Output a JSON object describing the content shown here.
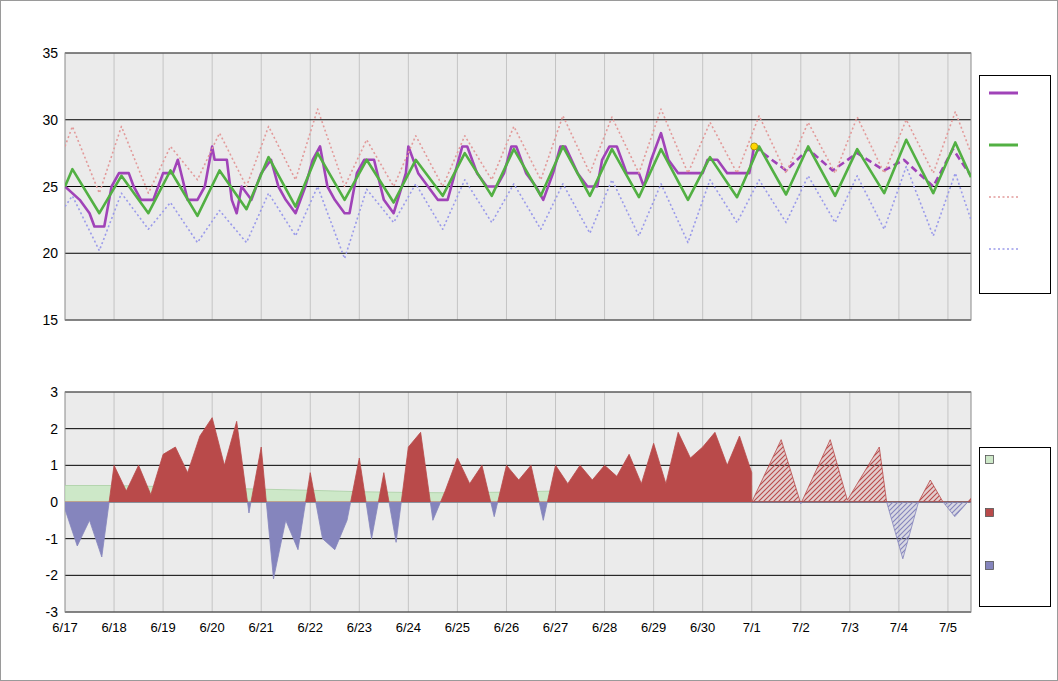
{
  "chart_data": [
    {
      "type": "line",
      "xlim": [
        0,
        18.47
      ],
      "xticks": [
        {
          "value": 0,
          "label": "6/17"
        },
        {
          "value": 1,
          "label": "6/18"
        },
        {
          "value": 2,
          "label": "6/19"
        },
        {
          "value": 3,
          "label": "6/20"
        },
        {
          "value": 4,
          "label": "6/21"
        },
        {
          "value": 5,
          "label": "6/22"
        },
        {
          "value": 6,
          "label": "6/23"
        },
        {
          "value": 7,
          "label": "6/24"
        },
        {
          "value": 8,
          "label": "6/25"
        },
        {
          "value": 9,
          "label": "6/26"
        },
        {
          "value": 10,
          "label": "6/27"
        },
        {
          "value": 11,
          "label": "6/28"
        },
        {
          "value": 12,
          "label": "6/29"
        },
        {
          "value": 13,
          "label": "6/30"
        },
        {
          "value": 14,
          "label": "7/1"
        },
        {
          "value": 15,
          "label": "7/2"
        },
        {
          "value": 16,
          "label": "7/3"
        },
        {
          "value": 17,
          "label": "7/4"
        },
        {
          "value": 18,
          "label": "7/5"
        }
      ],
      "ylim": [
        15,
        35
      ],
      "yticks": [
        15,
        20,
        25,
        30,
        35
      ],
      "grid": true,
      "tick_labels": "y",
      "legend": "right",
      "series": [
        {
          "color": "#a043b8",
          "line_style": "solid",
          "x": [
            0,
            0.3,
            0.5,
            0.6,
            0.8,
            0.95,
            1.1,
            1.3,
            1.4,
            1.55,
            1.8,
            1.9,
            2.0,
            2.2,
            2.3,
            2.5,
            2.7,
            2.85,
            3.0,
            3.05,
            3.3,
            3.4,
            3.5,
            3.6,
            3.8,
            4.0,
            4.2,
            4.35,
            4.5,
            4.7,
            4.9,
            5.05,
            5.2,
            5.35,
            5.5,
            5.7,
            5.8,
            5.95,
            6.1,
            6.3,
            6.5,
            6.7,
            6.95,
            7.0,
            7.2,
            7.4,
            7.6,
            7.8,
            7.95,
            8.1,
            8.2,
            8.4,
            8.6,
            8.8,
            8.95,
            9.1,
            9.2,
            9.4,
            9.6,
            9.75,
            9.95,
            10.1,
            10.2,
            10.45,
            10.65,
            10.85,
            10.95,
            11.1,
            11.25,
            11.45,
            11.7,
            11.8,
            11.95,
            12.15,
            12.3,
            12.5,
            12.8,
            13.0,
            13.1,
            13.3,
            13.5,
            13.8,
            13.95,
            14.05
          ],
          "values": [
            25,
            24,
            23,
            22,
            22,
            25,
            26,
            26,
            25,
            24,
            24,
            25,
            26,
            26,
            27,
            24,
            24,
            25,
            28,
            27,
            27,
            24,
            23,
            25,
            24,
            26,
            27,
            25,
            24,
            23,
            25,
            27,
            28,
            25,
            24,
            23,
            23,
            26,
            27,
            27,
            24,
            23,
            26,
            28,
            26,
            25,
            24,
            24,
            26,
            28,
            28,
            26,
            25,
            25,
            26,
            28,
            28,
            26,
            25,
            24,
            26,
            28,
            28,
            26,
            25,
            25,
            27,
            28,
            28,
            26,
            26,
            25,
            27,
            29,
            27,
            26,
            26,
            26,
            27,
            27,
            26,
            26,
            26,
            28
          ]
        },
        {
          "color": "#a043b8",
          "line_style": "dashed",
          "x": [
            14.05,
            14.7,
            15.15,
            15.65,
            16.15,
            16.7,
            17.1,
            17.7,
            18.1,
            18.47
          ],
          "values": [
            28,
            26.2,
            27.8,
            26.2,
            27.5,
            26.2,
            27,
            25,
            27.8,
            25.8
          ]
        },
        {
          "color": "#52b043",
          "line_style": "solid",
          "x": [
            0,
            0.15,
            0.7,
            1.15,
            1.7,
            2.15,
            2.7,
            3.15,
            3.7,
            4.15,
            4.7,
            5.15,
            5.7,
            6.15,
            6.7,
            7.15,
            7.7,
            8.15,
            8.7,
            9.15,
            9.7,
            10.15,
            10.7,
            11.15,
            11.7,
            12.15,
            12.7,
            13.15,
            13.7,
            14.15,
            14.7,
            15.15,
            15.7,
            16.15,
            16.7,
            17.15,
            17.7,
            18.15,
            18.47
          ],
          "values": [
            25,
            26.3,
            23,
            25.8,
            23,
            26.2,
            22.8,
            26.2,
            23.3,
            27.2,
            23.5,
            27.5,
            24,
            27,
            23.8,
            27,
            24.3,
            27.5,
            24.3,
            27.8,
            24.3,
            28,
            24.3,
            27.8,
            24.2,
            27.8,
            24,
            27.2,
            24.2,
            28,
            24.4,
            28,
            24.3,
            27.8,
            24.5,
            28.5,
            24.5,
            28.3,
            25.7
          ]
        },
        {
          "color": "#e29a9a",
          "line_style": "dotted",
          "x": [
            0,
            0.15,
            0.7,
            1.15,
            1.7,
            2.15,
            2.7,
            3.15,
            3.7,
            4.15,
            4.7,
            5.15,
            5.7,
            6.15,
            6.7,
            7.15,
            7.7,
            8.15,
            8.7,
            9.15,
            9.7,
            10.15,
            10.7,
            11.15,
            11.7,
            12.15,
            12.7,
            13.15,
            13.7,
            14.15,
            14.7,
            15.15,
            15.7,
            16.15,
            16.7,
            17.15,
            17.7,
            18.15,
            18.47
          ],
          "values": [
            28,
            29.5,
            24.5,
            29.5,
            24.5,
            28,
            25.5,
            29,
            25,
            29.5,
            25.5,
            30.8,
            25,
            28.5,
            25,
            28.8,
            25,
            28.8,
            25.5,
            29.5,
            25.5,
            30.3,
            26,
            30.2,
            26,
            30.8,
            26,
            29.8,
            26,
            30.3,
            26,
            29.8,
            26,
            30.2,
            26,
            30,
            26,
            30.6,
            27.5
          ]
        },
        {
          "color": "#9a9aea",
          "line_style": "dotted",
          "x": [
            0,
            0.15,
            0.7,
            1.15,
            1.7,
            2.15,
            2.7,
            3.15,
            3.7,
            4.15,
            4.7,
            5.15,
            5.7,
            6.15,
            6.7,
            7.15,
            7.7,
            8.15,
            8.7,
            9.15,
            9.7,
            10.15,
            10.7,
            11.15,
            11.7,
            12.15,
            12.7,
            13.15,
            13.7,
            14.15,
            14.7,
            15.15,
            15.7,
            16.15,
            16.7,
            17.15,
            17.7,
            18.15,
            18.47
          ],
          "values": [
            23.5,
            24.3,
            20.2,
            24.5,
            21.8,
            23.8,
            20.8,
            23.2,
            20.8,
            24.5,
            21.3,
            25,
            19.6,
            24.8,
            22.3,
            25.2,
            21.8,
            25.5,
            22.3,
            25.2,
            21.8,
            25.2,
            21.5,
            25.5,
            21.3,
            25.2,
            20.8,
            25.5,
            22.3,
            25.5,
            22.3,
            25.8,
            22.3,
            25.8,
            21.8,
            26.5,
            21.3,
            26,
            22.5
          ]
        },
        {
          "type": "scatter",
          "marker": "circle",
          "color": "#ffd700",
          "x": [
            14.05
          ],
          "values": [
            28
          ]
        }
      ]
    },
    {
      "type": "area",
      "xlim": [
        0,
        18.47
      ],
      "xticks": [
        {
          "value": 0,
          "label": "6/17"
        },
        {
          "value": 1,
          "label": "6/18"
        },
        {
          "value": 2,
          "label": "6/19"
        },
        {
          "value": 3,
          "label": "6/20"
        },
        {
          "value": 4,
          "label": "6/21"
        },
        {
          "value": 5,
          "label": "6/22"
        },
        {
          "value": 6,
          "label": "6/23"
        },
        {
          "value": 7,
          "label": "6/24"
        },
        {
          "value": 8,
          "label": "6/25"
        },
        {
          "value": 9,
          "label": "6/26"
        },
        {
          "value": 10,
          "label": "6/27"
        },
        {
          "value": 11,
          "label": "6/28"
        },
        {
          "value": 12,
          "label": "6/29"
        },
        {
          "value": 13,
          "label": "6/30"
        },
        {
          "value": 14,
          "label": "7/1"
        },
        {
          "value": 15,
          "label": "7/2"
        },
        {
          "value": 16,
          "label": "7/3"
        },
        {
          "value": 17,
          "label": "7/4"
        },
        {
          "value": 18,
          "label": "7/5"
        }
      ],
      "ylim": [
        -3,
        3
      ],
      "yticks": [
        -3,
        -2,
        -1,
        0,
        1,
        2,
        3
      ],
      "grid": true,
      "tick_labels": true,
      "legend": "right",
      "series": [
        {
          "color": "#cde8c8",
          "line_style": "solid",
          "x": [
            0,
            1,
            2,
            3,
            4,
            5,
            6,
            7,
            8,
            9,
            10,
            11,
            12,
            13,
            14
          ],
          "values": [
            0.45,
            0.45,
            0.42,
            0.38,
            0.35,
            0.32,
            0.28,
            0.26,
            0.25,
            0.27,
            0.3,
            0.33,
            0.36,
            0.4,
            0.45
          ]
        },
        {
          "colors": [
            "#b94a4a",
            "#8585bd"
          ],
          "line_style": "solid",
          "x": [
            0,
            0.25,
            0.5,
            0.75,
            1,
            1.25,
            1.5,
            1.75,
            2,
            2.25,
            2.5,
            2.75,
            3,
            3.25,
            3.5,
            3.75,
            4,
            4.25,
            4.5,
            4.75,
            5,
            5.25,
            5.5,
            5.75,
            6,
            6.25,
            6.5,
            6.75,
            7,
            7.25,
            7.5,
            7.75,
            8,
            8.25,
            8.5,
            8.75,
            9,
            9.25,
            9.5,
            9.75,
            10,
            10.25,
            10.5,
            10.75,
            11,
            11.25,
            11.5,
            11.75,
            12,
            12.25,
            12.5,
            12.75,
            13,
            13.25,
            13.5,
            13.75,
            14
          ],
          "values": [
            -0.2,
            -1.2,
            -0.5,
            -1.5,
            1.0,
            0.3,
            1.0,
            0.2,
            1.3,
            1.5,
            0.8,
            1.8,
            2.3,
            1.0,
            2.2,
            -0.3,
            1.5,
            -2.1,
            -0.5,
            -1.3,
            0.8,
            -1.0,
            -1.3,
            -0.5,
            1.2,
            -1.0,
            0.8,
            -1.1,
            1.5,
            1.9,
            -0.5,
            0.3,
            1.2,
            0.5,
            1.0,
            -0.4,
            1.0,
            0.6,
            1.0,
            -0.5,
            1.0,
            0.5,
            1.0,
            0.6,
            1.0,
            0.7,
            1.3,
            0.5,
            1.6,
            0.5,
            1.9,
            1.2,
            1.5,
            1.9,
            1.0,
            1.8,
            0.8
          ]
        },
        {
          "colors": [
            "#b94a4a",
            "#8585bd"
          ],
          "line_style": "hatched",
          "x": [
            14.0,
            14.6,
            15.0,
            15.6,
            15.95,
            16.6,
            16.75,
            17.08,
            17.4,
            17.64,
            17.9,
            18.14,
            18.47
          ],
          "values": [
            0,
            1.7,
            -0.05,
            1.7,
            0.05,
            1.5,
            0,
            -1.55,
            0,
            0.6,
            0,
            -0.4,
            0.1
          ]
        }
      ]
    }
  ]
}
